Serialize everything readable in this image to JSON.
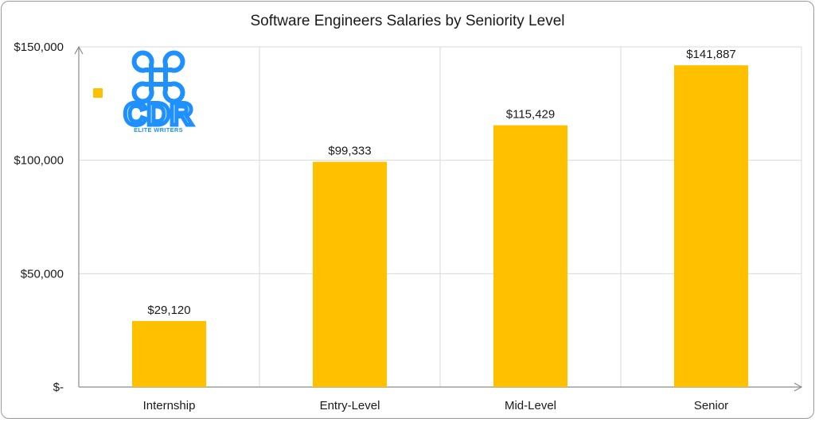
{
  "chart_data": {
    "type": "bar",
    "title": "Software Engineers Salaries by Seniority Level",
    "categories": [
      "Internship",
      "Entry-Level",
      "Mid-Level",
      "Senior"
    ],
    "values": [
      29120,
      99333,
      115429,
      141887
    ],
    "data_labels": [
      "$29,120",
      "$99,333",
      "$115,429",
      "$141,887"
    ],
    "y_ticks": [
      {
        "value": 0,
        "label": "$-"
      },
      {
        "value": 50000,
        "label": "$50,000"
      },
      {
        "value": 100000,
        "label": "$100,000"
      },
      {
        "value": 150000,
        "label": "$150,000"
      }
    ],
    "ylim": [
      0,
      150000
    ],
    "grid": true,
    "bar_color": "#FFC000",
    "grid_color": "#d9d9d9",
    "axis_color": "#8c8c8c",
    "legend": {
      "placement": "top-left",
      "color": "#FFC000"
    }
  },
  "logo": {
    "text": "CDR",
    "subtext": "ELITE WRITERS",
    "color": "#1E90FF",
    "icon": "command-key-icon"
  }
}
